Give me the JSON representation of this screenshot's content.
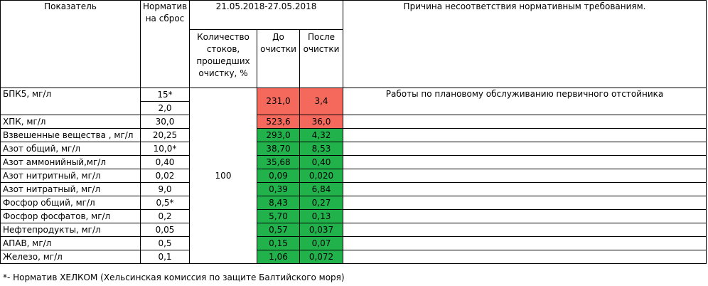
{
  "header": {
    "indicator": "Показатель",
    "norm_line1": "Норматив",
    "norm_line2": "на сброс",
    "period": "21.05.2018-27.05.2018",
    "reason": "Причина несоответствия нормативным требованиям.",
    "flow_share_lines": [
      "Количество",
      "стоков,",
      "прошедших",
      "очистку, %"
    ],
    "before_lines": [
      "До",
      "очистки"
    ],
    "after_lines": [
      "После",
      "очистки"
    ]
  },
  "flow_share_value": "100",
  "rows": [
    {
      "name": "БПК5, мг/л",
      "norm": "15*",
      "norm2": "2,0",
      "before": "231,0",
      "after": "3,4",
      "status": "red",
      "reason": "Работы по плановому обслуживанию первичного отстойника"
    },
    {
      "name": "ХПК, мг/л",
      "norm": "30,0",
      "before": "523,6",
      "after": "36,0",
      "status": "red",
      "reason": ""
    },
    {
      "name": "Взвешенные вещества , мг/л",
      "norm": "20,25",
      "before": "293,0",
      "after": "4,32",
      "status": "green",
      "reason": ""
    },
    {
      "name": "Азот общий, мг/л",
      "norm": "10,0*",
      "before": "38,70",
      "after": "8,53",
      "status": "green",
      "reason": ""
    },
    {
      "name": "Азот аммонийный,мг/л",
      "norm": "0,40",
      "before": "35,68",
      "after": "0,40",
      "status": "green",
      "reason": ""
    },
    {
      "name": "Азот нитритный, мг/л",
      "norm": "0,02",
      "before": "0,09",
      "after": "0,020",
      "status": "green",
      "reason": ""
    },
    {
      "name": "Азот нитратный, мг/л",
      "norm": "9,0",
      "before": "0,39",
      "after": "6,84",
      "status": "green",
      "reason": ""
    },
    {
      "name": "Фосфор общий, мг/л",
      "norm": "0,5*",
      "before": "8,43",
      "after": "0,27",
      "status": "green",
      "reason": ""
    },
    {
      "name": "Фосфор фосфатов, мг/л",
      "norm": "0,2",
      "before": "5,70",
      "after": "0,13",
      "status": "green",
      "reason": ""
    },
    {
      "name": "Нефтепродукты, мг/л",
      "norm": "0,05",
      "before": "0,57",
      "after": "0,037",
      "status": "green",
      "reason": ""
    },
    {
      "name": "АПАВ, мг/л",
      "norm": "0,5",
      "before": "0,15",
      "after": "0,07",
      "status": "green",
      "reason": ""
    },
    {
      "name": "Железо, мг/л",
      "norm": "0,1",
      "before": "1,06",
      "after": "0,072",
      "status": "green",
      "reason": ""
    }
  ],
  "footnote": "*- Норматив ХЕЛКОМ (Хельсинская комиссия по защите Балтийского моря)",
  "colors": {
    "red": "#f4695b",
    "green": "#21b24c"
  }
}
